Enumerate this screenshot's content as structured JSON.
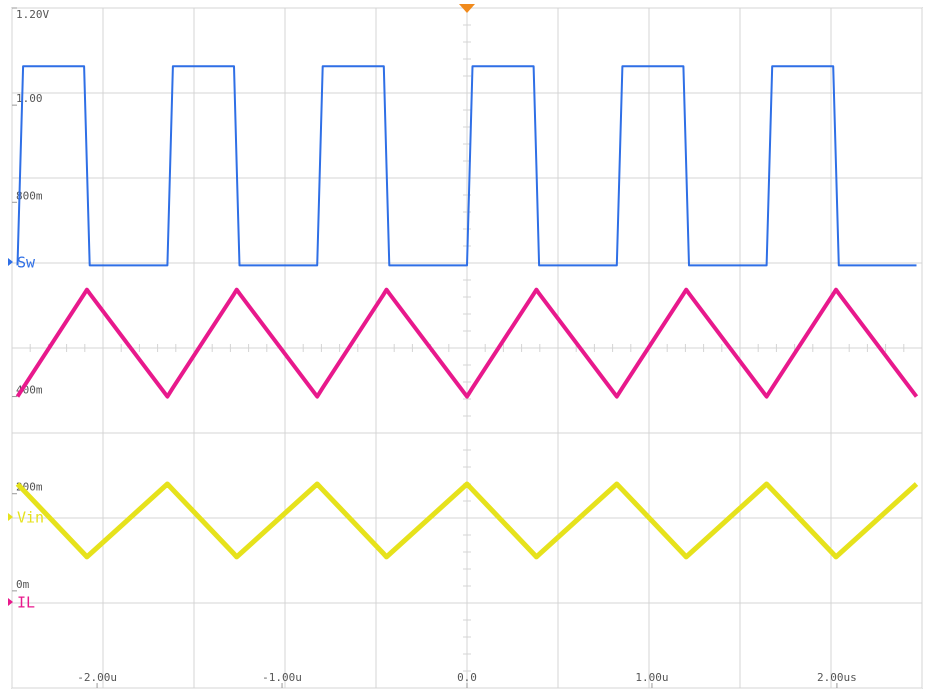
{
  "chart_data": {
    "type": "line",
    "x": [
      -2.43,
      -2.4,
      -2.07,
      -2.055,
      -2.04,
      -1.62,
      -1.59,
      -1.26,
      -1.245,
      -1.23,
      -0.81,
      -0.78,
      -0.45,
      -0.435,
      -0.42,
      0,
      0.03,
      0.36,
      0.375,
      0.39,
      0.81,
      0.84,
      1.17,
      1.185,
      1.2,
      1.62,
      1.65,
      1.98,
      1.995,
      2.01,
      2.43
    ],
    "series": [
      {
        "name": "Sw",
        "color": "#2f6fe6",
        "values": [
          0.67,
          1.08,
          1.08,
          0.875,
          0.67,
          0.67,
          1.08,
          1.08,
          0.875,
          0.67,
          0.67,
          1.08,
          1.08,
          0.875,
          0.67,
          0.67,
          1.08,
          1.08,
          0.875,
          0.67,
          0.67,
          1.08,
          1.08,
          0.875,
          0.67,
          0.67,
          1.08,
          1.08,
          0.875,
          0.67,
          0.67
        ]
      },
      {
        "name": "IL",
        "color": "#e8198c",
        "values": [
          0.4,
          0.418,
          0.611,
          0.62,
          0.612,
          0.4,
          0.418,
          0.611,
          0.62,
          0.612,
          0.4,
          0.418,
          0.611,
          0.62,
          0.612,
          0.4,
          0.418,
          0.611,
          0.62,
          0.612,
          0.4,
          0.418,
          0.611,
          0.62,
          0.612,
          0.4,
          0.418,
          0.611,
          0.62,
          0.612,
          0.4
        ]
      },
      {
        "name": "Vin",
        "color": "#e6e21c",
        "values": [
          0.22,
          0.208,
          0.076,
          0.07,
          0.075,
          0.22,
          0.208,
          0.076,
          0.07,
          0.075,
          0.22,
          0.208,
          0.076,
          0.07,
          0.075,
          0.22,
          0.208,
          0.076,
          0.07,
          0.075,
          0.22,
          0.208,
          0.076,
          0.07,
          0.075,
          0.22,
          0.208,
          0.076,
          0.07,
          0.075,
          0.22
        ]
      }
    ],
    "xlim": [
      -2.46,
      2.46
    ],
    "ylim": [
      -0.2,
      1.2
    ],
    "xticks": [
      {
        "value": -2,
        "label": "-2.00u"
      },
      {
        "value": -1,
        "label": "-1.00u"
      },
      {
        "value": 0,
        "label": "0.0"
      },
      {
        "value": 1,
        "label": "1.00u"
      },
      {
        "value": 2,
        "label": "2.00us"
      }
    ],
    "yticks": [
      {
        "value": 1.2,
        "label": "1.20V"
      },
      {
        "value": 1,
        "label": "1.00"
      },
      {
        "value": 0.8,
        "label": "800m"
      },
      {
        "value": 0.4,
        "label": "400m"
      },
      {
        "value": 0.2,
        "label": "200m"
      },
      {
        "value": 0,
        "label": "0m"
      }
    ]
  }
}
